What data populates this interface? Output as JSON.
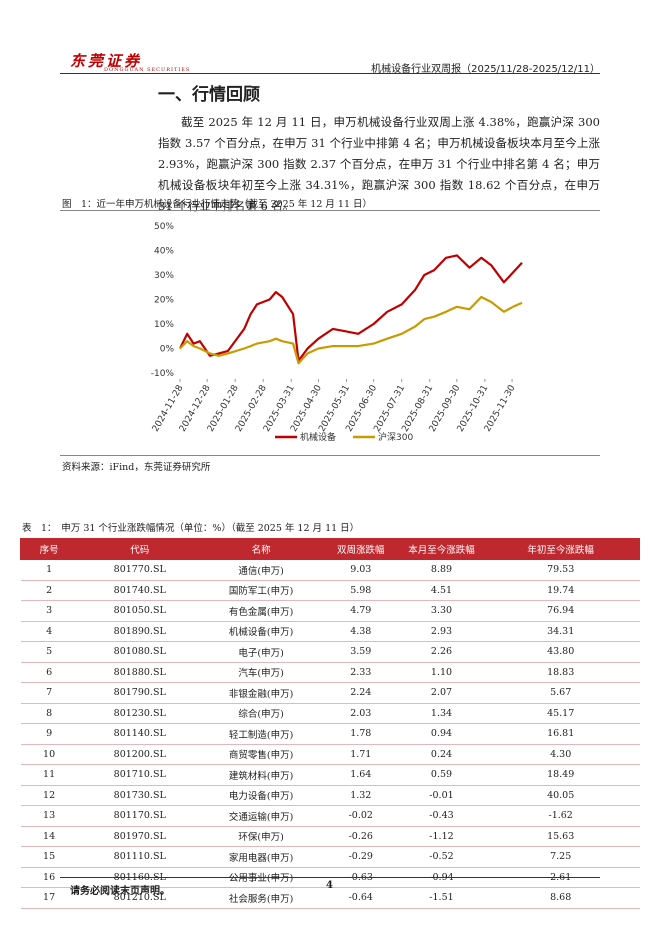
{
  "header": {
    "logo_cn": "东莞证券",
    "logo_en": "DONGGUAN SECURITIES",
    "report": "机械设备行业双周报（2025/11/28-2025/12/11）"
  },
  "section_title": "一、行情回顾",
  "paragraph": "截至 2025 年 12 月 11 日，申万机械设备行业双周上涨 4.38%，跑赢沪深 300 指数 3.57 个百分点，在申万 31 个行业中排第 4 名；申万机械设备板块本月至今上涨 2.93%，跑赢沪深 300 指数 2.37 个百分点，在申万 31 个行业中排名第 4 名；申万机械设备板块年初至今上涨 34.31%，跑赢沪深 300 指数 18.62 个百分点，在申万 31 个行业中排名第 6 名。",
  "figure_caption": "图　1：近一年申万机械设备行业行情走势（截至 2025 年 12 月 11 日）",
  "chart_data": {
    "type": "line",
    "x": [
      "2024-11-28",
      "2024-12-06",
      "2024-12-13",
      "2024-12-20",
      "2024-12-31",
      "2025-01-10",
      "2025-01-20",
      "2025-02-07",
      "2025-02-14",
      "2025-02-21",
      "2025-03-07",
      "2025-03-14",
      "2025-03-21",
      "2025-04-02",
      "2025-04-08",
      "2025-04-18",
      "2025-04-30",
      "2025-05-16",
      "2025-05-30",
      "2025-06-13",
      "2025-06-30",
      "2025-07-15",
      "2025-07-31",
      "2025-08-15",
      "2025-08-25",
      "2025-09-05",
      "2025-09-18",
      "2025-09-30",
      "2025-10-14",
      "2025-10-27",
      "2025-11-07",
      "2025-11-21",
      "2025-12-01",
      "2025-12-11"
    ],
    "series": [
      {
        "name": "机械设备",
        "color": "#c00000",
        "values": [
          0,
          6,
          2,
          3,
          -3,
          -2,
          -1,
          8,
          14,
          18,
          20,
          23,
          21,
          14,
          -5,
          0,
          4,
          8,
          7,
          6,
          10,
          15,
          18,
          24,
          30,
          32,
          37,
          38,
          33,
          37,
          34,
          27,
          31,
          35
        ]
      },
      {
        "name": "沪深300",
        "color": "#c89b00",
        "values": [
          0,
          3,
          1,
          0,
          -2,
          -3,
          -2,
          0,
          1,
          2,
          3,
          4,
          3,
          2,
          -6,
          -2,
          0,
          1,
          1,
          1,
          2,
          4,
          6,
          9,
          12,
          13,
          15,
          17,
          16,
          21,
          19,
          15,
          17,
          18.6
        ]
      }
    ],
    "xlim": [
      "2024-11-28",
      "2025-12-11"
    ],
    "xticks": [
      "2024-11-28",
      "2024-12-28",
      "2025-01-28",
      "2025-02-28",
      "2025-03-31",
      "2025-04-30",
      "2025-05-31",
      "2025-06-30",
      "2025-07-31",
      "2025-08-31",
      "2025-09-30",
      "2025-10-31",
      "2025-11-30"
    ],
    "ylim": [
      -10,
      50
    ],
    "yticks": [
      {
        "value": -10,
        "label": "-10%"
      },
      {
        "value": 0,
        "label": "0%"
      },
      {
        "value": 10,
        "label": "10%"
      },
      {
        "value": 20,
        "label": "20%"
      },
      {
        "value": 30,
        "label": "30%"
      },
      {
        "value": 40,
        "label": "40%"
      },
      {
        "value": 50,
        "label": "50%"
      }
    ],
    "legend": "bottom"
  },
  "source": "资料来源：iFind，东莞证券研究所",
  "table": {
    "caption": "表　1：　申万 31 个行业涨跌幅情况（单位：%）（截至 2025 年 12 月 11 日）",
    "header": [
      "序号",
      "代码",
      "名称",
      "双周涨跌幅",
      "本月至今涨跌幅",
      "年初至今涨跌幅"
    ],
    "rows": [
      [
        "1",
        "801770.SL",
        "通信(申万)",
        "9.03",
        "8.89",
        "79.53"
      ],
      [
        "2",
        "801740.SL",
        "国防军工(申万)",
        "5.98",
        "4.51",
        "19.74"
      ],
      [
        "3",
        "801050.SL",
        "有色金属(申万)",
        "4.79",
        "3.30",
        "76.94"
      ],
      [
        "4",
        "801890.SL",
        "机械设备(申万)",
        "4.38",
        "2.93",
        "34.31"
      ],
      [
        "5",
        "801080.SL",
        "电子(申万)",
        "3.59",
        "2.26",
        "43.80"
      ],
      [
        "6",
        "801880.SL",
        "汽车(申万)",
        "2.33",
        "1.10",
        "18.83"
      ],
      [
        "7",
        "801790.SL",
        "非银金融(申万)",
        "2.24",
        "2.07",
        "5.67"
      ],
      [
        "8",
        "801230.SL",
        "综合(申万)",
        "2.03",
        "1.34",
        "45.17"
      ],
      [
        "9",
        "801140.SL",
        "轻工制造(申万)",
        "1.78",
        "0.94",
        "16.81"
      ],
      [
        "10",
        "801200.SL",
        "商贸零售(申万)",
        "1.71",
        "0.24",
        "4.30"
      ],
      [
        "11",
        "801710.SL",
        "建筑材料(申万)",
        "1.64",
        "0.59",
        "18.49"
      ],
      [
        "12",
        "801730.SL",
        "电力设备(申万)",
        "1.32",
        "-0.01",
        "40.05"
      ],
      [
        "13",
        "801170.SL",
        "交通运输(申万)",
        "-0.02",
        "-0.43",
        "-1.62"
      ],
      [
        "14",
        "801970.SL",
        "环保(申万)",
        "-0.26",
        "-1.12",
        "15.63"
      ],
      [
        "15",
        "801110.SL",
        "家用电器(申万)",
        "-0.29",
        "-0.52",
        "7.25"
      ],
      [
        "16",
        "801160.SL",
        "公用事业(申万)",
        "-0.63",
        "-0.94",
        "2.61"
      ],
      [
        "17",
        "801210.SL",
        "社会服务(申万)",
        "-0.64",
        "-1.51",
        "8.68"
      ]
    ]
  },
  "footer": {
    "disclaimer": "请务必阅读末页声明。",
    "page": "4"
  }
}
